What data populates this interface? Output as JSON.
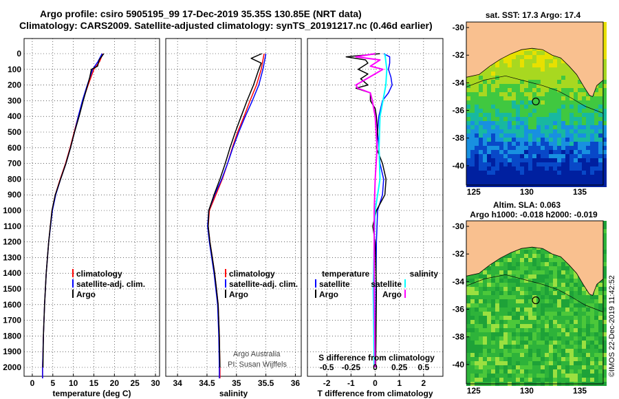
{
  "header": {
    "line1": "Argo profile: csiro 5905195_99 17-Dec-2019 35.35S 130.85E (NRT data)",
    "line2": "Climatology: CARS2009. Satellite-adjusted climatology: synTS_20191217.nc (0.46d earlier)"
  },
  "colors": {
    "climatology": "#ff0000",
    "satellite": "#0000ff",
    "argo": "#000000",
    "sat_salinity": "#00ffff",
    "argo_salinity": "#ff00ff",
    "land": "#f9c08f"
  },
  "chart_data": [
    {
      "type": "line",
      "title": "",
      "xlabel": "temperature (deg C)",
      "ylabel": "",
      "xlim": [
        -2,
        31
      ],
      "ylim": [
        2070,
        0
      ],
      "xticks": [
        "0",
        "5",
        "10",
        "15",
        "20",
        "25",
        "30"
      ],
      "yticks": [
        "0",
        "100",
        "200",
        "300",
        "400",
        "500",
        "600",
        "700",
        "800",
        "900",
        "1000",
        "1100",
        "1200",
        "1300",
        "1400",
        "1500",
        "1600",
        "1700",
        "1800",
        "1900",
        "2000"
      ],
      "legend": [
        "climatology",
        "satellite-adj. clim.",
        "Argo"
      ],
      "series": [
        {
          "name": "climatology",
          "depth": [
            0,
            50,
            100,
            200,
            300,
            400,
            500,
            600,
            700,
            800,
            900,
            1000,
            1200,
            1400,
            1600,
            1800,
            2000,
            2070
          ],
          "values": [
            17.2,
            16.4,
            15.0,
            13.6,
            12.3,
            11.2,
            10.2,
            9.2,
            8.1,
            6.8,
            5.6,
            4.8,
            4.0,
            3.4,
            3.0,
            2.7,
            2.5,
            2.5
          ]
        },
        {
          "name": "satellite-adj. clim.",
          "depth": [
            0,
            50,
            100,
            200,
            300,
            400,
            500,
            600,
            700,
            800,
            900,
            1000,
            1200,
            1400,
            1600,
            1800,
            2000,
            2070
          ],
          "values": [
            17.0,
            16.0,
            14.7,
            13.4,
            12.2,
            11.2,
            10.3,
            9.3,
            8.2,
            6.9,
            5.7,
            4.9,
            4.0,
            3.4,
            3.0,
            2.7,
            2.5,
            2.5
          ]
        },
        {
          "name": "Argo",
          "depth": [
            0,
            40,
            80,
            100,
            150,
            200,
            300,
            400,
            500,
            600,
            700,
            800,
            900,
            1000,
            1200,
            1400,
            1600,
            1800,
            2000
          ],
          "values": [
            17.4,
            16.3,
            15.9,
            14.4,
            14.0,
            13.5,
            12.4,
            11.4,
            10.3,
            9.3,
            8.2,
            6.9,
            5.6,
            4.8,
            4.0,
            3.4,
            3.0,
            2.7,
            2.6
          ]
        }
      ]
    },
    {
      "type": "line",
      "xlabel": "salinity",
      "xlim": [
        33.8,
        36.1
      ],
      "ylim": [
        2070,
        0
      ],
      "xticks": [
        "34",
        "34.5",
        "35",
        "35.5",
        "36"
      ],
      "legend": [
        "climatology",
        "satellite-adj. clim.",
        "Argo"
      ],
      "series": [
        {
          "name": "climatology",
          "depth": [
            0,
            100,
            200,
            300,
            400,
            500,
            600,
            700,
            800,
            900,
            1000,
            1100,
            1200,
            1300,
            1400,
            1500,
            1600,
            1800,
            2000,
            2070
          ],
          "values": [
            35.47,
            35.42,
            35.34,
            35.23,
            35.13,
            35.02,
            34.93,
            34.85,
            34.76,
            34.65,
            34.54,
            34.52,
            34.55,
            34.59,
            34.63,
            34.66,
            34.69,
            34.71,
            34.72,
            34.72
          ]
        },
        {
          "name": "satellite-adj. clim.",
          "depth": [
            0,
            100,
            200,
            300,
            400,
            500,
            600,
            700,
            800,
            900,
            1000,
            1100,
            1200,
            1300,
            1400,
            1500,
            1600,
            1800,
            2000,
            2070
          ],
          "values": [
            35.5,
            35.45,
            35.38,
            35.27,
            35.15,
            35.04,
            34.94,
            34.85,
            34.75,
            34.63,
            34.53,
            34.51,
            34.54,
            34.58,
            34.62,
            34.65,
            34.68,
            34.7,
            34.71,
            34.71
          ]
        },
        {
          "name": "Argo",
          "depth": [
            0,
            30,
            60,
            100,
            200,
            300,
            400,
            500,
            600,
            700,
            800,
            900,
            1000,
            1100,
            1200,
            1300,
            1400,
            1500,
            1600,
            1800,
            2000
          ],
          "values": [
            35.43,
            35.25,
            35.42,
            35.38,
            35.29,
            35.18,
            35.08,
            34.98,
            34.89,
            34.81,
            34.72,
            34.62,
            34.53,
            34.52,
            34.55,
            34.59,
            34.63,
            34.66,
            34.69,
            34.71,
            34.72
          ]
        }
      ]
    },
    {
      "type": "line",
      "xlabel": "T difference from climatology",
      "x2label": "S difference from climatology",
      "xlim": [
        -2.8,
        2.8
      ],
      "ylim": [
        2070,
        0
      ],
      "xticks": [
        "-2",
        "-1",
        "0",
        "1",
        "2"
      ],
      "x2ticks": [
        "-0.5",
        "-0.25",
        "0",
        "0.25",
        "0.5"
      ],
      "legend_left": {
        "heading": "temperature",
        "items": [
          "satellite",
          "Argo"
        ]
      },
      "legend_right": {
        "heading": "salinity",
        "items": [
          "satellite",
          "Argo"
        ]
      },
      "series": [
        {
          "name": "T satellite",
          "depth": [
            0,
            20,
            60,
            100,
            150,
            200,
            250,
            300,
            400,
            500,
            600,
            700,
            800,
            900,
            1000,
            1200,
            1500,
            2000
          ],
          "values": [
            0.35,
            0.6,
            0.6,
            0.55,
            0.65,
            0.7,
            0.55,
            0.3,
            0.15,
            0.1,
            0.15,
            0.2,
            0.35,
            0.3,
            0.1,
            0.05,
            0.03,
            0.02
          ]
        },
        {
          "name": "T Argo",
          "depth": [
            0,
            20,
            40,
            60,
            80,
            100,
            130,
            160,
            200,
            220,
            250,
            300,
            350,
            400,
            500,
            600,
            700,
            800,
            900,
            1000,
            1100,
            1200,
            1500,
            2000
          ],
          "values": [
            0.2,
            -1.2,
            -0.4,
            -0.3,
            -0.5,
            -0.7,
            -0.3,
            -0.6,
            -0.3,
            -0.8,
            -0.2,
            -0.2,
            0,
            0.05,
            0.1,
            0.05,
            0.3,
            0.45,
            0.4,
            0.05,
            -0.1,
            0,
            0.05,
            0.02
          ]
        },
        {
          "name": "S satellite",
          "depth": [
            0,
            100,
            200,
            300,
            400,
            600,
            800,
            1000,
            1200,
            1500,
            2000
          ],
          "values": [
            0.1,
            0.12,
            0.11,
            0.08,
            0.05,
            0.04,
            0.05,
            0.0,
            -0.01,
            -0.02,
            -0.01
          ]
        },
        {
          "name": "S Argo",
          "depth": [
            0,
            20,
            40,
            80,
            100,
            200,
            220,
            250,
            300,
            400,
            600,
            800,
            1000,
            1500,
            2000
          ],
          "values": [
            0.0,
            -0.2,
            0.05,
            -0.05,
            0.08,
            -0.2,
            -0.18,
            -0.05,
            -0.03,
            0.0,
            0.02,
            0.0,
            -0.01,
            -0.01,
            0.0
          ]
        }
      ]
    }
  ],
  "maps": [
    {
      "title": "sat. SST: 17.3 Argo: 17.4",
      "yticks": [
        "-30",
        "-32",
        "-34",
        "-36",
        "-38",
        "-40"
      ],
      "xticks": [
        "125",
        "130",
        "135"
      ]
    },
    {
      "title1": "Altim. SLA: 0.063",
      "title2": "Argo h1000: -0.018 h2000: -0.019",
      "yticks": [
        "-30",
        "-32",
        "-34",
        "-36",
        "-38",
        "-40"
      ],
      "xticks": [
        "125",
        "130",
        "135"
      ]
    }
  ],
  "credits": {
    "line1": "Argo Australia",
    "line2": "PI: Susan Wijffels",
    "stamp": "©IMOS 22-Dec-2019 11:42:52"
  }
}
